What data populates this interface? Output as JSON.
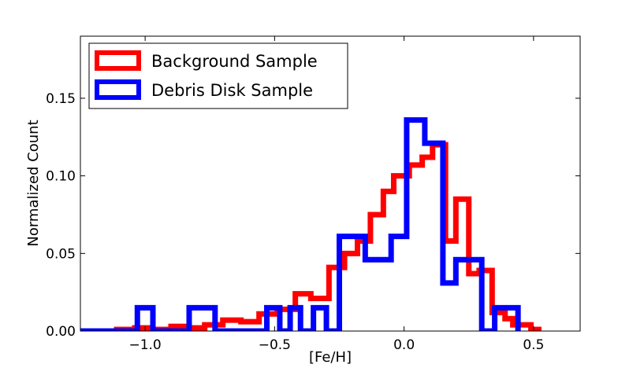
{
  "chart_data": {
    "type": "step",
    "xlabel": "[Fe/H]",
    "ylabel": "Normalized Count",
    "xlim": [
      -1.25,
      0.68
    ],
    "ylim": [
      0,
      0.19
    ],
    "xticks": [
      -1.0,
      -0.5,
      0.0,
      0.5
    ],
    "xtick_labels": [
      "−1.0",
      "−0.5",
      "0.0",
      "0.5"
    ],
    "yticks": [
      0.0,
      0.05,
      0.1,
      0.15
    ],
    "ytick_labels": [
      "0.00",
      "0.05",
      "0.10",
      "0.15"
    ],
    "grid": false,
    "legend_position": "top-left",
    "series": [
      {
        "name": "Background Sample",
        "color": "#ff0000",
        "edges": [
          -1.25,
          -1.11,
          -1.04,
          -0.98,
          -0.9,
          -0.84,
          -0.77,
          -0.7,
          -0.63,
          -0.56,
          -0.49,
          -0.42,
          -0.36,
          -0.29,
          -0.23,
          -0.18,
          -0.13,
          -0.08,
          -0.04,
          0.02,
          0.07,
          0.11,
          0.16,
          0.2,
          0.25,
          0.29,
          0.34,
          0.39,
          0.42,
          0.49,
          0.52
        ],
        "values": [
          0.0,
          0.001,
          0.002,
          0.001,
          0.003,
          0.002,
          0.004,
          0.007,
          0.006,
          0.011,
          0.014,
          0.024,
          0.021,
          0.041,
          0.05,
          0.058,
          0.075,
          0.09,
          0.1,
          0.107,
          0.112,
          0.12,
          0.058,
          0.085,
          0.037,
          0.039,
          0.012,
          0.008,
          0.004,
          0.001
        ]
      },
      {
        "name": "Debris Disk Sample",
        "color": "#0000ff",
        "edges": [
          -1.25,
          -1.03,
          -0.97,
          -0.83,
          -0.73,
          -0.53,
          -0.48,
          -0.44,
          -0.4,
          -0.35,
          -0.3,
          -0.25,
          -0.15,
          -0.05,
          0.01,
          0.08,
          0.15,
          0.2,
          0.3,
          0.35,
          0.44
        ],
        "values": [
          0.0,
          0.015,
          0.0,
          0.015,
          0.0,
          0.015,
          0.0,
          0.015,
          0.0,
          0.015,
          0.0,
          0.061,
          0.046,
          0.061,
          0.136,
          0.121,
          0.031,
          0.046,
          0.0,
          0.015
        ]
      }
    ]
  }
}
